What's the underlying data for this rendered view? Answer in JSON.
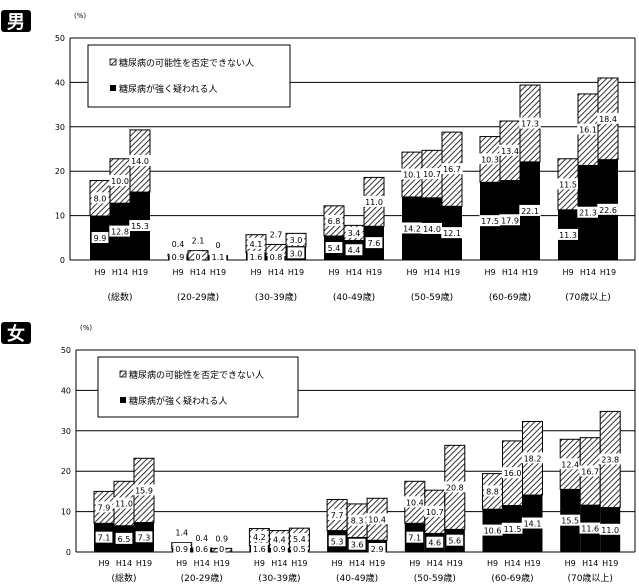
{
  "chart_data": [
    {
      "type": "bar",
      "stacked": true,
      "panel_label": "男",
      "unit_label": "(%)",
      "ylim": [
        0,
        50
      ],
      "yticks": [
        0,
        10,
        20,
        30,
        40,
        50
      ],
      "grid": true,
      "legend_placement": "top-left",
      "categories": [
        "(総数)",
        "(20-29歳)",
        "(30-39歳)",
        "(40-49歳)",
        "(50-59歳)",
        "(60-69歳)",
        "(70歳以上)"
      ],
      "sub_categories": [
        "H9",
        "H14",
        "H19"
      ],
      "series": [
        {
          "name": "糖尿病が強く疑われる人",
          "fill": "solid-black",
          "values": [
            [
              9.9,
              12.8,
              15.3
            ],
            [
              0.9,
              0,
              1.1
            ],
            [
              1.6,
              0.8,
              3.0
            ],
            [
              5.4,
              4.4,
              7.6
            ],
            [
              14.2,
              14.0,
              12.1
            ],
            [
              17.5,
              17.9,
              22.1
            ],
            [
              11.3,
              21.3,
              22.6
            ]
          ]
        },
        {
          "name": "糖尿病の可能性を否定できない人",
          "fill": "diagonal-hatch",
          "values": [
            [
              8.0,
              10.0,
              14.0
            ],
            [
              0.4,
              2.1,
              0
            ],
            [
              4.1,
              2.7,
              3.0
            ],
            [
              6.8,
              3.4,
              11.0
            ],
            [
              10.1,
              10.7,
              16.7
            ],
            [
              10.3,
              13.4,
              17.3
            ],
            [
              11.5,
              16.1,
              18.4
            ]
          ]
        }
      ]
    },
    {
      "type": "bar",
      "stacked": true,
      "panel_label": "女",
      "unit_label": "(%)",
      "ylim": [
        0,
        50
      ],
      "yticks": [
        0,
        10,
        20,
        30,
        40,
        50
      ],
      "grid": true,
      "legend_placement": "top-left",
      "categories": [
        "(総数)",
        "(20-29歳)",
        "(30-39歳)",
        "(40-49歳)",
        "(50-59歳)",
        "(60-69歳)",
        "(70歳以上)"
      ],
      "sub_categories": [
        "H9",
        "H14",
        "H19"
      ],
      "series": [
        {
          "name": "糖尿病が強く疑われる人",
          "fill": "solid-black",
          "values": [
            [
              7.1,
              6.5,
              7.3
            ],
            [
              0.9,
              0.6,
              0
            ],
            [
              1.6,
              0.9,
              0.5
            ],
            [
              5.3,
              3.6,
              2.9
            ],
            [
              7.1,
              4.6,
              5.6
            ],
            [
              10.6,
              11.5,
              14.1
            ],
            [
              15.5,
              11.6,
              11.0
            ]
          ]
        },
        {
          "name": "糖尿病の可能性を否定できない人",
          "fill": "diagonal-hatch",
          "values": [
            [
              7.9,
              11.0,
              15.9
            ],
            [
              1.4,
              0.4,
              0.9
            ],
            [
              4.2,
              4.4,
              5.4
            ],
            [
              7.7,
              8.3,
              10.4
            ],
            [
              10.4,
              10.7,
              20.8
            ],
            [
              8.8,
              16.0,
              18.2
            ],
            [
              12.4,
              16.7,
              23.8
            ]
          ]
        }
      ]
    }
  ]
}
